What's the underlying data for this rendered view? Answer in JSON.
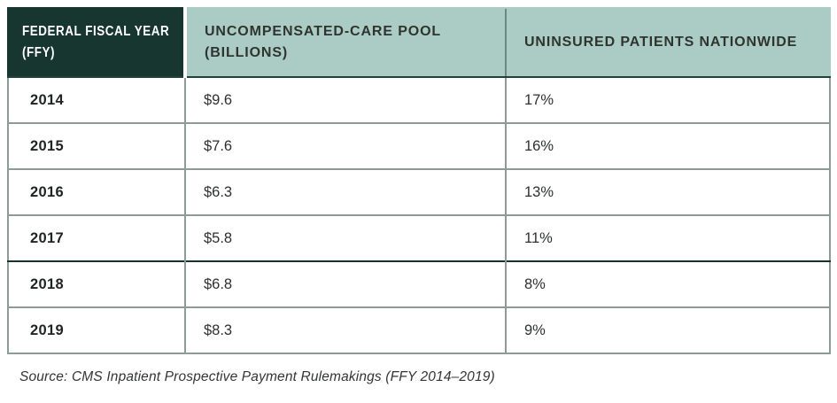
{
  "chart_data": {
    "type": "table",
    "title": "",
    "columns": [
      "FEDERAL FISCAL YEAR (FFY)",
      "UNCOMPENSATED-CARE POOL (BILLIONS)",
      "UNINSURED PATIENTS NATIONWIDE"
    ],
    "rows": [
      {
        "ffy": "2014",
        "pool_billions": "$9.6",
        "uninsured": "17%"
      },
      {
        "ffy": "2015",
        "pool_billions": "$7.6",
        "uninsured": "16%"
      },
      {
        "ffy": "2016",
        "pool_billions": "$6.3",
        "uninsured": "13%"
      },
      {
        "ffy": "2017",
        "pool_billions": "$5.8",
        "uninsured": "11%"
      },
      {
        "ffy": "2018",
        "pool_billions": "$6.8",
        "uninsured": "8%"
      },
      {
        "ffy": "2019",
        "pool_billions": "$8.3",
        "uninsured": "9%"
      }
    ],
    "source": "Source: CMS Inpatient Prospective Payment Rulemakings (FFY 2014–2019)"
  },
  "colors": {
    "header_dark_bg": "#16362f",
    "header_dark_text": "#ffffff",
    "header_sage_bg": "#abccc4",
    "header_sage_text": "#2f3431",
    "border_gray": "#8d9b98",
    "border_dark_teal": "#24403a",
    "row_divider_strong": "#17332e",
    "body_text": "#2d302f"
  }
}
